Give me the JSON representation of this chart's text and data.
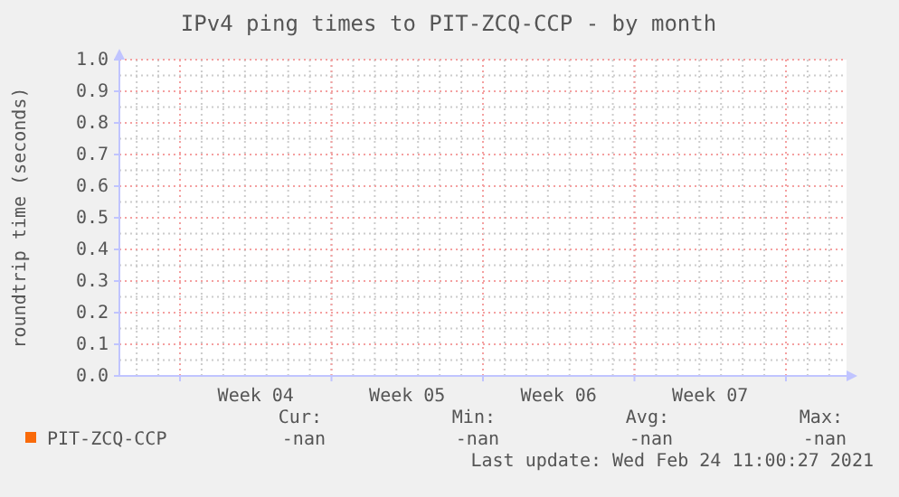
{
  "chart_data": {
    "type": "line",
    "title": "IPv4 ping times to PIT-ZCQ-CCP - by month",
    "ylabel": "roundtrip time (seconds)",
    "categories": [
      null,
      "Week 04",
      "Week 05",
      "Week 06",
      "Week 07",
      null
    ],
    "ylim": [
      0,
      1
    ],
    "yticks": [
      {
        "value": 0,
        "label": "0.0"
      },
      {
        "value": 0.1,
        "label": "0.1"
      },
      {
        "value": 0.2,
        "label": "0.2"
      },
      {
        "value": 0.3,
        "label": "0.3"
      },
      {
        "value": 0.4,
        "label": "0.4"
      },
      {
        "value": 0.5,
        "label": "0.5"
      },
      {
        "value": 0.6,
        "label": "0.6"
      },
      {
        "value": 0.7,
        "label": "0.7"
      },
      {
        "value": 0.8,
        "label": "0.8"
      },
      {
        "value": 0.9,
        "label": "0.9"
      },
      {
        "value": 1,
        "label": "1.0"
      }
    ],
    "grid": true,
    "legend": "bottom left",
    "series": [
      {
        "name": "PIT-ZCQ-CCP",
        "color": "#f96a0a",
        "values": [
          null,
          null,
          null,
          null,
          null,
          null
        ]
      }
    ],
    "annotations": [
      "Cur:",
      "-nan",
      "Min:",
      "-nan",
      "Avg:",
      "-nan",
      "Max:",
      "-nan",
      "Last update: Wed Feb 24 11:00:27 2021"
    ]
  }
}
